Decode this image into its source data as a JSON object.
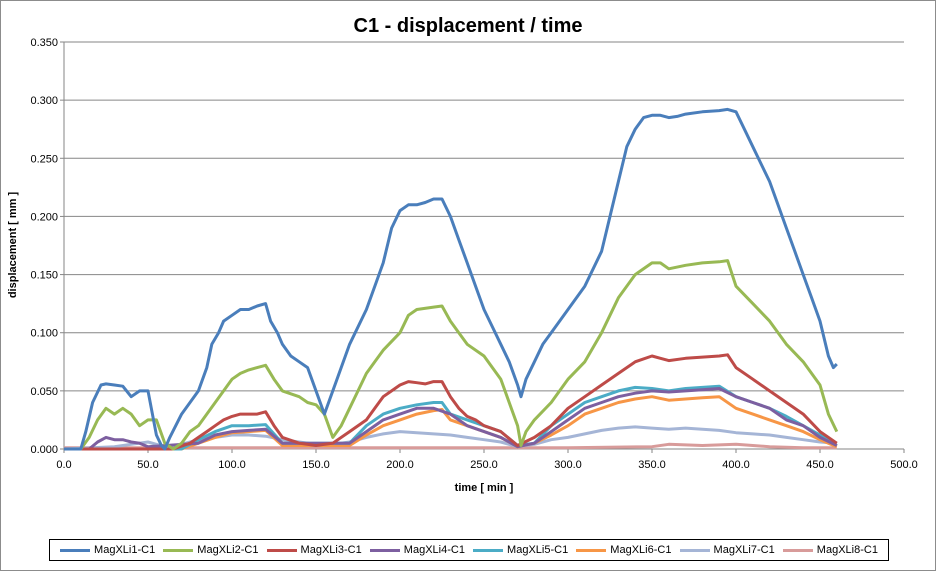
{
  "chart_data": {
    "type": "line",
    "title": "C1 - displacement / time",
    "xlabel": "time [ min ]",
    "ylabel": "displacement [ mm ]",
    "xlim": [
      0,
      500
    ],
    "ylim": [
      0,
      0.35
    ],
    "xticks": [
      "0.0",
      "50.0",
      "100.0",
      "150.0",
      "200.0",
      "250.0",
      "300.0",
      "350.0",
      "400.0",
      "450.0",
      "500.0"
    ],
    "yticks": [
      "0.000",
      "0.050",
      "0.100",
      "0.150",
      "0.200",
      "0.250",
      "0.300",
      "0.350"
    ],
    "grid": "horizontal",
    "legend_position": "bottom",
    "series": [
      {
        "name": "MagXLi1-C1",
        "color": "#4a7ebb",
        "x": [
          0,
          10,
          13,
          17,
          22,
          25,
          30,
          35,
          40,
          45,
          50,
          55,
          58,
          60,
          63,
          70,
          75,
          80,
          85,
          88,
          92,
          95,
          100,
          105,
          110,
          115,
          120,
          123,
          127,
          130,
          135,
          140,
          145,
          150,
          155,
          160,
          170,
          180,
          185,
          190,
          195,
          200,
          205,
          210,
          215,
          220,
          225,
          230,
          235,
          240,
          245,
          250,
          255,
          260,
          265,
          270,
          272,
          275,
          280,
          285,
          290,
          300,
          310,
          320,
          325,
          330,
          335,
          340,
          345,
          350,
          355,
          360,
          365,
          370,
          380,
          390,
          395,
          400,
          405,
          410,
          415,
          420,
          425,
          430,
          435,
          440,
          445,
          450,
          455,
          458,
          460
        ],
        "y": [
          0,
          0,
          0.015,
          0.04,
          0.055,
          0.056,
          0.055,
          0.054,
          0.045,
          0.05,
          0.05,
          0.012,
          0.003,
          0,
          0.01,
          0.03,
          0.04,
          0.05,
          0.07,
          0.09,
          0.1,
          0.11,
          0.115,
          0.12,
          0.12,
          0.123,
          0.125,
          0.11,
          0.1,
          0.09,
          0.08,
          0.075,
          0.07,
          0.05,
          0.03,
          0.05,
          0.09,
          0.12,
          0.14,
          0.16,
          0.19,
          0.205,
          0.21,
          0.21,
          0.212,
          0.215,
          0.215,
          0.2,
          0.18,
          0.16,
          0.14,
          0.12,
          0.105,
          0.09,
          0.075,
          0.055,
          0.045,
          0.06,
          0.075,
          0.09,
          0.1,
          0.12,
          0.14,
          0.17,
          0.2,
          0.23,
          0.26,
          0.275,
          0.285,
          0.287,
          0.287,
          0.285,
          0.286,
          0.288,
          0.29,
          0.291,
          0.292,
          0.29,
          0.275,
          0.26,
          0.245,
          0.23,
          0.21,
          0.19,
          0.17,
          0.15,
          0.13,
          0.11,
          0.08,
          0.07,
          0.073
        ]
      },
      {
        "name": "MagXLi2-C1",
        "color": "#98b954",
        "x": [
          0,
          10,
          15,
          20,
          25,
          30,
          35,
          40,
          45,
          50,
          55,
          60,
          65,
          70,
          75,
          80,
          85,
          90,
          95,
          100,
          105,
          110,
          115,
          120,
          125,
          130,
          140,
          145,
          150,
          155,
          160,
          165,
          170,
          175,
          180,
          185,
          190,
          200,
          205,
          210,
          220,
          225,
          230,
          235,
          240,
          250,
          260,
          265,
          270,
          272,
          275,
          280,
          290,
          300,
          310,
          320,
          330,
          340,
          350,
          355,
          360,
          370,
          380,
          390,
          395,
          400,
          410,
          420,
          430,
          440,
          450,
          455,
          460
        ],
        "y": [
          0,
          0,
          0.01,
          0.025,
          0.035,
          0.03,
          0.035,
          0.03,
          0.02,
          0.025,
          0.025,
          0.005,
          0,
          0.005,
          0.015,
          0.02,
          0.03,
          0.04,
          0.05,
          0.06,
          0.065,
          0.068,
          0.07,
          0.072,
          0.06,
          0.05,
          0.045,
          0.04,
          0.038,
          0.03,
          0.01,
          0.02,
          0.035,
          0.05,
          0.065,
          0.075,
          0.085,
          0.1,
          0.115,
          0.12,
          0.122,
          0.123,
          0.11,
          0.1,
          0.09,
          0.08,
          0.06,
          0.04,
          0.02,
          0.003,
          0.015,
          0.025,
          0.04,
          0.06,
          0.075,
          0.1,
          0.13,
          0.15,
          0.16,
          0.16,
          0.155,
          0.158,
          0.16,
          0.161,
          0.162,
          0.14,
          0.125,
          0.11,
          0.09,
          0.075,
          0.055,
          0.03,
          0.015
        ]
      },
      {
        "name": "MagXLi3-C1",
        "color": "#be4b48",
        "x": [
          0,
          65,
          75,
          80,
          85,
          90,
          95,
          100,
          105,
          110,
          115,
          120,
          125,
          130,
          140,
          150,
          160,
          170,
          180,
          185,
          190,
          195,
          200,
          205,
          210,
          215,
          220,
          225,
          230,
          235,
          240,
          245,
          250,
          260,
          270,
          280,
          290,
          300,
          310,
          320,
          330,
          340,
          350,
          355,
          360,
          370,
          380,
          390,
          395,
          400,
          410,
          420,
          430,
          440,
          450,
          460
        ],
        "y": [
          0,
          0,
          0.005,
          0.01,
          0.015,
          0.02,
          0.025,
          0.028,
          0.03,
          0.03,
          0.03,
          0.032,
          0.02,
          0.01,
          0.005,
          0.003,
          0.005,
          0.015,
          0.025,
          0.035,
          0.045,
          0.05,
          0.055,
          0.058,
          0.057,
          0.056,
          0.058,
          0.058,
          0.045,
          0.035,
          0.028,
          0.025,
          0.02,
          0.015,
          0.003,
          0.01,
          0.02,
          0.035,
          0.045,
          0.055,
          0.065,
          0.075,
          0.08,
          0.078,
          0.076,
          0.078,
          0.079,
          0.08,
          0.081,
          0.07,
          0.06,
          0.05,
          0.04,
          0.03,
          0.015,
          0.005
        ]
      },
      {
        "name": "MagXLi4-C1",
        "color": "#7d5fa0",
        "x": [
          0,
          15,
          20,
          25,
          30,
          35,
          40,
          45,
          50,
          80,
          90,
          100,
          110,
          120,
          130,
          170,
          180,
          190,
          200,
          210,
          220,
          230,
          240,
          250,
          260,
          270,
          280,
          290,
          300,
          310,
          320,
          330,
          340,
          350,
          360,
          370,
          380,
          390,
          400,
          410,
          420,
          430,
          440,
          450,
          460
        ],
        "y": [
          0,
          0,
          0.006,
          0.01,
          0.008,
          0.008,
          0.006,
          0.005,
          0.002,
          0.005,
          0.012,
          0.015,
          0.016,
          0.017,
          0.005,
          0.005,
          0.015,
          0.025,
          0.03,
          0.035,
          0.035,
          0.03,
          0.02,
          0.015,
          0.01,
          0.002,
          0.005,
          0.015,
          0.025,
          0.035,
          0.04,
          0.045,
          0.048,
          0.05,
          0.049,
          0.05,
          0.051,
          0.052,
          0.045,
          0.04,
          0.035,
          0.025,
          0.02,
          0.01,
          0.003
        ]
      },
      {
        "name": "MagXLi5-C1",
        "color": "#4bacc6",
        "x": [
          0,
          70,
          80,
          90,
          100,
          110,
          120,
          130,
          170,
          180,
          190,
          200,
          210,
          220,
          225,
          230,
          240,
          250,
          260,
          270,
          280,
          290,
          300,
          310,
          320,
          330,
          340,
          350,
          360,
          370,
          380,
          390,
          400,
          410,
          420,
          430,
          440,
          450,
          460
        ],
        "y": [
          0,
          0,
          0.008,
          0.015,
          0.02,
          0.02,
          0.021,
          0.005,
          0.005,
          0.02,
          0.03,
          0.035,
          0.038,
          0.04,
          0.04,
          0.03,
          0.025,
          0.02,
          0.015,
          0.003,
          0.005,
          0.02,
          0.03,
          0.04,
          0.045,
          0.05,
          0.053,
          0.052,
          0.05,
          0.052,
          0.053,
          0.054,
          0.045,
          0.04,
          0.035,
          0.028,
          0.02,
          0.012,
          0.003
        ]
      },
      {
        "name": "MagXLi6-C1",
        "color": "#f79646",
        "x": [
          0,
          70,
          80,
          90,
          100,
          110,
          120,
          130,
          170,
          180,
          190,
          200,
          210,
          220,
          225,
          230,
          240,
          250,
          260,
          270,
          280,
          290,
          300,
          310,
          320,
          330,
          340,
          350,
          360,
          370,
          380,
          390,
          400,
          410,
          420,
          430,
          440,
          450,
          460
        ],
        "y": [
          0,
          0,
          0.005,
          0.01,
          0.014,
          0.015,
          0.016,
          0.003,
          0.003,
          0.012,
          0.02,
          0.025,
          0.03,
          0.033,
          0.034,
          0.025,
          0.02,
          0.015,
          0.01,
          0.002,
          0.005,
          0.012,
          0.02,
          0.03,
          0.035,
          0.04,
          0.043,
          0.045,
          0.042,
          0.043,
          0.044,
          0.045,
          0.035,
          0.03,
          0.025,
          0.02,
          0.015,
          0.008,
          0.002
        ]
      },
      {
        "name": "MagXLi7-C1",
        "color": "#a5b5d6",
        "x": [
          0,
          30,
          40,
          50,
          60,
          70,
          80,
          90,
          100,
          110,
          120,
          130,
          140,
          150,
          160,
          170,
          180,
          190,
          200,
          210,
          220,
          230,
          240,
          250,
          260,
          270,
          280,
          290,
          300,
          310,
          320,
          330,
          340,
          350,
          360,
          370,
          380,
          390,
          400,
          410,
          420,
          430,
          440,
          450,
          460
        ],
        "y": [
          0,
          0.002,
          0.004,
          0.006,
          0.002,
          0.004,
          0.008,
          0.01,
          0.012,
          0.012,
          0.011,
          0.008,
          0.006,
          0.004,
          0.004,
          0.006,
          0.01,
          0.013,
          0.015,
          0.014,
          0.013,
          0.012,
          0.01,
          0.008,
          0.006,
          0.002,
          0.004,
          0.008,
          0.01,
          0.013,
          0.016,
          0.018,
          0.019,
          0.018,
          0.017,
          0.018,
          0.017,
          0.016,
          0.014,
          0.013,
          0.012,
          0.01,
          0.008,
          0.006,
          0.005
        ]
      },
      {
        "name": "MagXLi8-C1",
        "color": "#d89b9a",
        "x": [
          0,
          100,
          150,
          200,
          250,
          300,
          350,
          360,
          380,
          400,
          420,
          440,
          460
        ],
        "y": [
          0.001,
          0.001,
          0.001,
          0.001,
          0.001,
          0.001,
          0.002,
          0.004,
          0.003,
          0.004,
          0.002,
          0.001,
          0.001
        ]
      }
    ]
  }
}
